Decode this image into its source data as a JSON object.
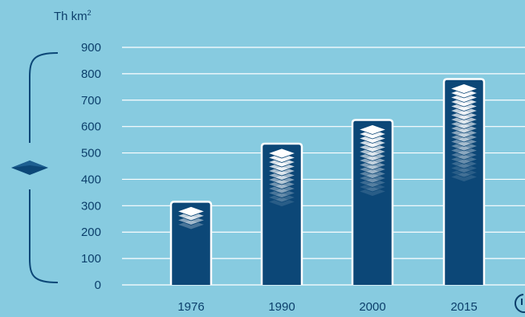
{
  "chart_data": {
    "type": "bar",
    "unit_label": "Th km",
    "unit_superscript": "2",
    "categories": [
      "1976",
      "1990",
      "2000",
      "2015"
    ],
    "values": [
      315,
      535,
      625,
      780
    ],
    "ylim": [
      0,
      900
    ],
    "yticks": [
      "0",
      "100",
      "200",
      "300",
      "400",
      "500",
      "600",
      "700",
      "800",
      "900"
    ],
    "grid": true,
    "colors": {
      "background": "#87cbe0",
      "bar": "#0c4777",
      "bar_border": "#ffffff",
      "grid": "#ffffff",
      "text": "#0c3f6b",
      "bracket": "#0c4777"
    }
  },
  "icons": {
    "layer_icon": "layer-diamond-icon",
    "partial_icon": "circular-icon"
  }
}
